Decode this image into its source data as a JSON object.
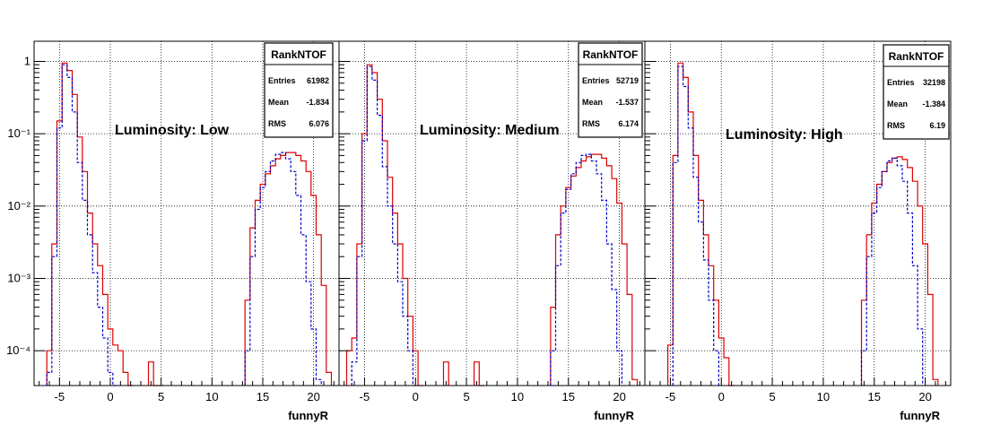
{
  "chart_data": [
    {
      "type": "line",
      "xlabel": "funnyR",
      "annotation": "Luminosity: Low",
      "xlim": [
        -7.5,
        22.5
      ],
      "ylim": [
        3.3e-05,
        1.9
      ],
      "yscale": "log",
      "grid": true,
      "x_ticks": [
        -5,
        0,
        5,
        10,
        15,
        20
      ],
      "y_ticks": [
        {
          "v": 1,
          "t": "1"
        },
        {
          "v": 0.1,
          "t": "10⁻¹"
        },
        {
          "v": 0.01,
          "t": "10⁻²"
        },
        {
          "v": 0.001,
          "t": "10⁻³"
        },
        {
          "v": 0.0001,
          "t": "10⁻⁴"
        }
      ],
      "stats": {
        "title": "RankNTOF",
        "rows": [
          {
            "label": "Entries",
            "value": "61982"
          },
          {
            "label": "Mean",
            "value": "-1.834"
          },
          {
            "label": "RMS",
            "value": "6.076"
          }
        ]
      },
      "series": [
        {
          "color": "#dd0000",
          "dashed": false,
          "x": [
            -6.0,
            -5.5,
            -5.0,
            -4.5,
            -4.0,
            -3.5,
            -3.0,
            -2.5,
            -2.0,
            -1.5,
            -1.0,
            -0.5,
            0.0,
            0.5,
            1.0,
            1.5,
            2.0,
            4.0,
            4.5,
            5.0,
            13.5,
            14.0,
            14.5,
            15.0,
            15.5,
            16.0,
            16.5,
            17.0,
            17.5,
            18.0,
            18.5,
            19.0,
            19.5,
            20.0,
            20.5,
            21.0,
            21.5
          ],
          "y": [
            0.0001,
            0.003,
            0.15,
            0.95,
            0.75,
            0.35,
            0.09,
            0.03,
            0.008,
            0.003,
            0.0015,
            0.0006,
            0.0002,
            0.00012,
            0.0001,
            5e-05,
            0,
            7e-05,
            0,
            0,
            0.0005,
            0.005,
            0.012,
            0.02,
            0.028,
            0.036,
            0.045,
            0.05,
            0.055,
            0.055,
            0.05,
            0.042,
            0.03,
            0.014,
            0.004,
            0.0008,
            5e-05
          ]
        },
        {
          "color": "#0000cc",
          "dashed": true,
          "x": [
            -6.0,
            -5.5,
            -5.0,
            -4.5,
            -4.0,
            -3.5,
            -3.0,
            -2.5,
            -2.0,
            -1.5,
            -1.0,
            -0.5,
            0.0,
            0.5,
            13.5,
            14.0,
            14.5,
            15.0,
            15.5,
            16.0,
            16.5,
            17.0,
            17.5,
            18.0,
            18.5,
            19.0,
            19.5,
            20.0,
            20.5
          ],
          "y": [
            5e-05,
            0.002,
            0.12,
            0.9,
            0.6,
            0.2,
            0.04,
            0.012,
            0.004,
            0.0012,
            0.0004,
            0.00015,
            5e-05,
            0,
            0.0001,
            0.002,
            0.009,
            0.018,
            0.03,
            0.042,
            0.052,
            0.055,
            0.045,
            0.03,
            0.014,
            0.004,
            0.0009,
            0.0002,
            4e-05
          ]
        }
      ]
    },
    {
      "type": "line",
      "xlabel": "funnyR",
      "annotation": "Luminosity: Medium",
      "xlim": [
        -7.5,
        22.5
      ],
      "ylim": [
        3.3e-05,
        1.9
      ],
      "yscale": "log",
      "grid": true,
      "x_ticks": [
        -5,
        0,
        5,
        10,
        15,
        20
      ],
      "y_ticks": [],
      "stats": {
        "title": "RankNTOF",
        "rows": [
          {
            "label": "Entries",
            "value": "52719"
          },
          {
            "label": "Mean",
            "value": "-1.537"
          },
          {
            "label": "RMS",
            "value": "6.174"
          }
        ]
      },
      "series": [
        {
          "color": "#dd0000",
          "dashed": false,
          "x": [
            -6.5,
            -6.0,
            -5.5,
            -5.0,
            -4.5,
            -4.0,
            -3.5,
            -3.0,
            -2.5,
            -2.0,
            -1.5,
            -1.0,
            -0.5,
            0.0,
            0.5,
            3.0,
            6.0,
            6.5,
            13.5,
            14.0,
            14.5,
            15.0,
            15.5,
            16.0,
            16.5,
            17.0,
            17.5,
            18.0,
            18.5,
            19.0,
            19.5,
            20.0,
            20.5,
            21.0,
            21.5
          ],
          "y": [
            0.0001,
            0.00015,
            0.003,
            0.1,
            0.9,
            0.7,
            0.3,
            0.08,
            0.025,
            0.008,
            0.003,
            0.001,
            0.0003,
            0.0001,
            0,
            7e-05,
            7e-05,
            0,
            0.0004,
            0.004,
            0.01,
            0.018,
            0.026,
            0.034,
            0.042,
            0.048,
            0.052,
            0.052,
            0.046,
            0.036,
            0.024,
            0.011,
            0.003,
            0.0006,
            4e-05
          ]
        },
        {
          "color": "#0000cc",
          "dashed": true,
          "x": [
            -6.0,
            -5.5,
            -5.0,
            -4.5,
            -4.0,
            -3.5,
            -3.0,
            -2.5,
            -2.0,
            -1.5,
            -1.0,
            -0.5,
            0.0,
            13.5,
            14.0,
            14.5,
            15.0,
            15.5,
            16.0,
            16.5,
            17.0,
            17.5,
            18.0,
            18.5,
            19.0,
            19.5,
            20.0
          ],
          "y": [
            7e-05,
            0.002,
            0.08,
            0.85,
            0.55,
            0.18,
            0.035,
            0.01,
            0.003,
            0.0009,
            0.0003,
            0.0001,
            0,
            0.0001,
            0.0015,
            0.008,
            0.017,
            0.028,
            0.04,
            0.05,
            0.052,
            0.042,
            0.028,
            0.012,
            0.003,
            0.0007,
            0.0001
          ]
        }
      ]
    },
    {
      "type": "line",
      "xlabel": "funnyR",
      "annotation": "Luminosity: High",
      "xlim": [
        -7.5,
        22.5
      ],
      "ylim": [
        3.3e-05,
        1.9
      ],
      "yscale": "log",
      "grid": true,
      "x_ticks": [
        -5,
        0,
        5,
        10,
        15,
        20
      ],
      "y_ticks": [],
      "stats": {
        "title": "RankNTOF",
        "rows": [
          {
            "label": "Entries",
            "value": "32198"
          },
          {
            "label": "Mean",
            "value": "-1.384"
          },
          {
            "label": "RMS",
            "value": "6.19"
          }
        ]
      },
      "series": [
        {
          "color": "#dd0000",
          "dashed": false,
          "x": [
            -5.0,
            -4.5,
            -4.0,
            -3.5,
            -3.0,
            -2.5,
            -2.0,
            -1.5,
            -1.0,
            -0.5,
            0.0,
            0.5,
            1.0,
            14.0,
            14.5,
            15.0,
            15.5,
            16.0,
            16.5,
            17.0,
            17.5,
            18.0,
            18.5,
            19.0,
            19.5,
            20.0,
            20.5,
            21.0
          ],
          "y": [
            0.00012,
            0.05,
            0.95,
            0.6,
            0.2,
            0.05,
            0.012,
            0.004,
            0.0015,
            0.0005,
            0.00015,
            8e-05,
            0,
            0.0005,
            0.004,
            0.011,
            0.02,
            0.03,
            0.04,
            0.046,
            0.048,
            0.044,
            0.034,
            0.022,
            0.01,
            0.003,
            0.0006,
            4e-05
          ]
        },
        {
          "color": "#0000cc",
          "dashed": true,
          "x": [
            -4.5,
            -4.0,
            -3.5,
            -3.0,
            -2.5,
            -2.0,
            -1.5,
            -1.0,
            -0.5,
            14.0,
            14.5,
            15.0,
            15.5,
            16.0,
            16.5,
            17.0,
            17.5,
            18.0,
            18.5,
            19.0,
            19.5
          ],
          "y": [
            0.04,
            0.85,
            0.45,
            0.12,
            0.025,
            0.006,
            0.0018,
            0.0005,
            0.0001,
            0.0001,
            0.002,
            0.008,
            0.018,
            0.03,
            0.042,
            0.046,
            0.036,
            0.022,
            0.008,
            0.0015,
            0.0002
          ]
        }
      ]
    }
  ]
}
